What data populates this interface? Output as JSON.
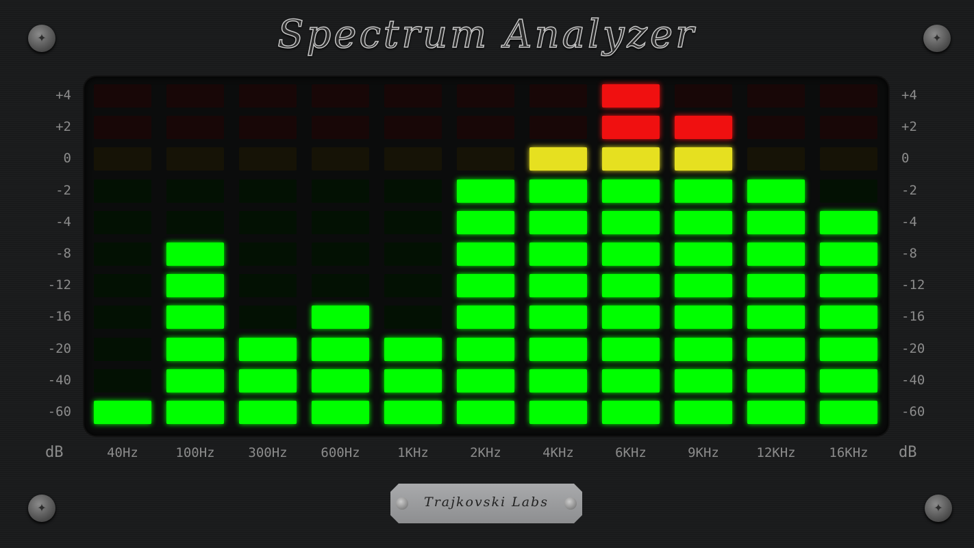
{
  "title": "Spectrum Analyzer",
  "brand": "Trajkovski Labs",
  "db_scale": [
    "+4",
    "+2",
    "0",
    "-2",
    "-4",
    "-8",
    "-12",
    "-16",
    "-20",
    "-40",
    "-60"
  ],
  "unit_label": "dB",
  "colors": {
    "green": "#00ff00",
    "yellow": "#e6e020",
    "red": "#f01010",
    "green_off": "#031103",
    "yellow_off": "#161306",
    "red_off": "#180707"
  },
  "bands": [
    {
      "label": "40Hz",
      "level": 1
    },
    {
      "label": "100Hz",
      "level": 6
    },
    {
      "label": "300Hz",
      "level": 3
    },
    {
      "label": "600Hz",
      "level": 4
    },
    {
      "label": "1KHz",
      "level": 3
    },
    {
      "label": "2KHz",
      "level": 8
    },
    {
      "label": "4KHz",
      "level": 9
    },
    {
      "label": "6KHz",
      "level": 11
    },
    {
      "label": "9KHz",
      "level": 10
    },
    {
      "label": "12KHz",
      "level": 8
    },
    {
      "label": "16KHz",
      "level": 7
    }
  ]
}
